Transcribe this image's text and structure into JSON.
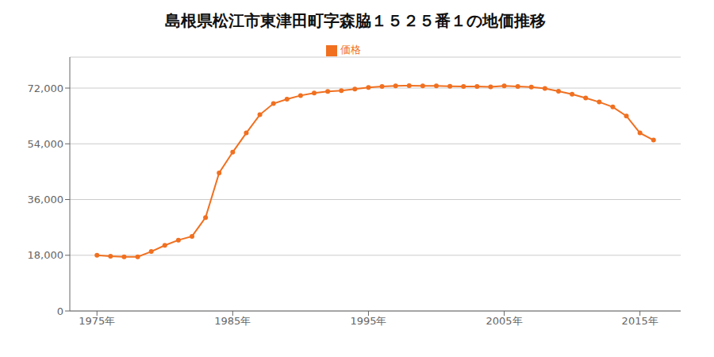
{
  "chart_data": {
    "type": "line",
    "title": "島根県松江市東津田町字森脇１５２５番１の地価推移",
    "x": [
      1975,
      1976,
      1977,
      1978,
      1979,
      1980,
      1981,
      1982,
      1983,
      1984,
      1985,
      1986,
      1987,
      1988,
      1989,
      1990,
      1991,
      1992,
      1993,
      1994,
      1995,
      1996,
      1997,
      1998,
      1999,
      2000,
      2001,
      2002,
      2003,
      2004,
      2005,
      2006,
      2007,
      2008,
      2009,
      2010,
      2011,
      2012,
      2013,
      2014,
      2015,
      2016
    ],
    "series": [
      {
        "name": "価格",
        "color": "#f07020",
        "marker": "circle",
        "values": [
          18000,
          17700,
          17500,
          17500,
          19200,
          21200,
          22900,
          24100,
          30200,
          44600,
          51300,
          57500,
          63400,
          67000,
          68400,
          69600,
          70400,
          70900,
          71200,
          71700,
          72200,
          72500,
          72700,
          72800,
          72700,
          72700,
          72600,
          72500,
          72500,
          72400,
          72700,
          72500,
          72300,
          71900,
          71000,
          70000,
          68800,
          67500,
          65900,
          63000,
          57500,
          55200
        ]
      }
    ],
    "xlim": [
      1973,
      2018
    ],
    "xticks": [
      {
        "value": 1975,
        "label": "1975年"
      },
      {
        "value": 1985,
        "label": "1985年"
      },
      {
        "value": 1995,
        "label": "1995年"
      },
      {
        "value": 2005,
        "label": "2005年"
      },
      {
        "value": 2015,
        "label": "2015年"
      }
    ],
    "ylim": [
      0,
      82000
    ],
    "yticks": [
      0,
      {
        "value": 18000,
        "label": "18,000"
      },
      {
        "value": 36000,
        "label": "36,000"
      },
      {
        "value": 54000,
        "label": "54,000"
      },
      {
        "value": 72000,
        "label": "72,000"
      }
    ],
    "grid": true,
    "legend": "top"
  }
}
